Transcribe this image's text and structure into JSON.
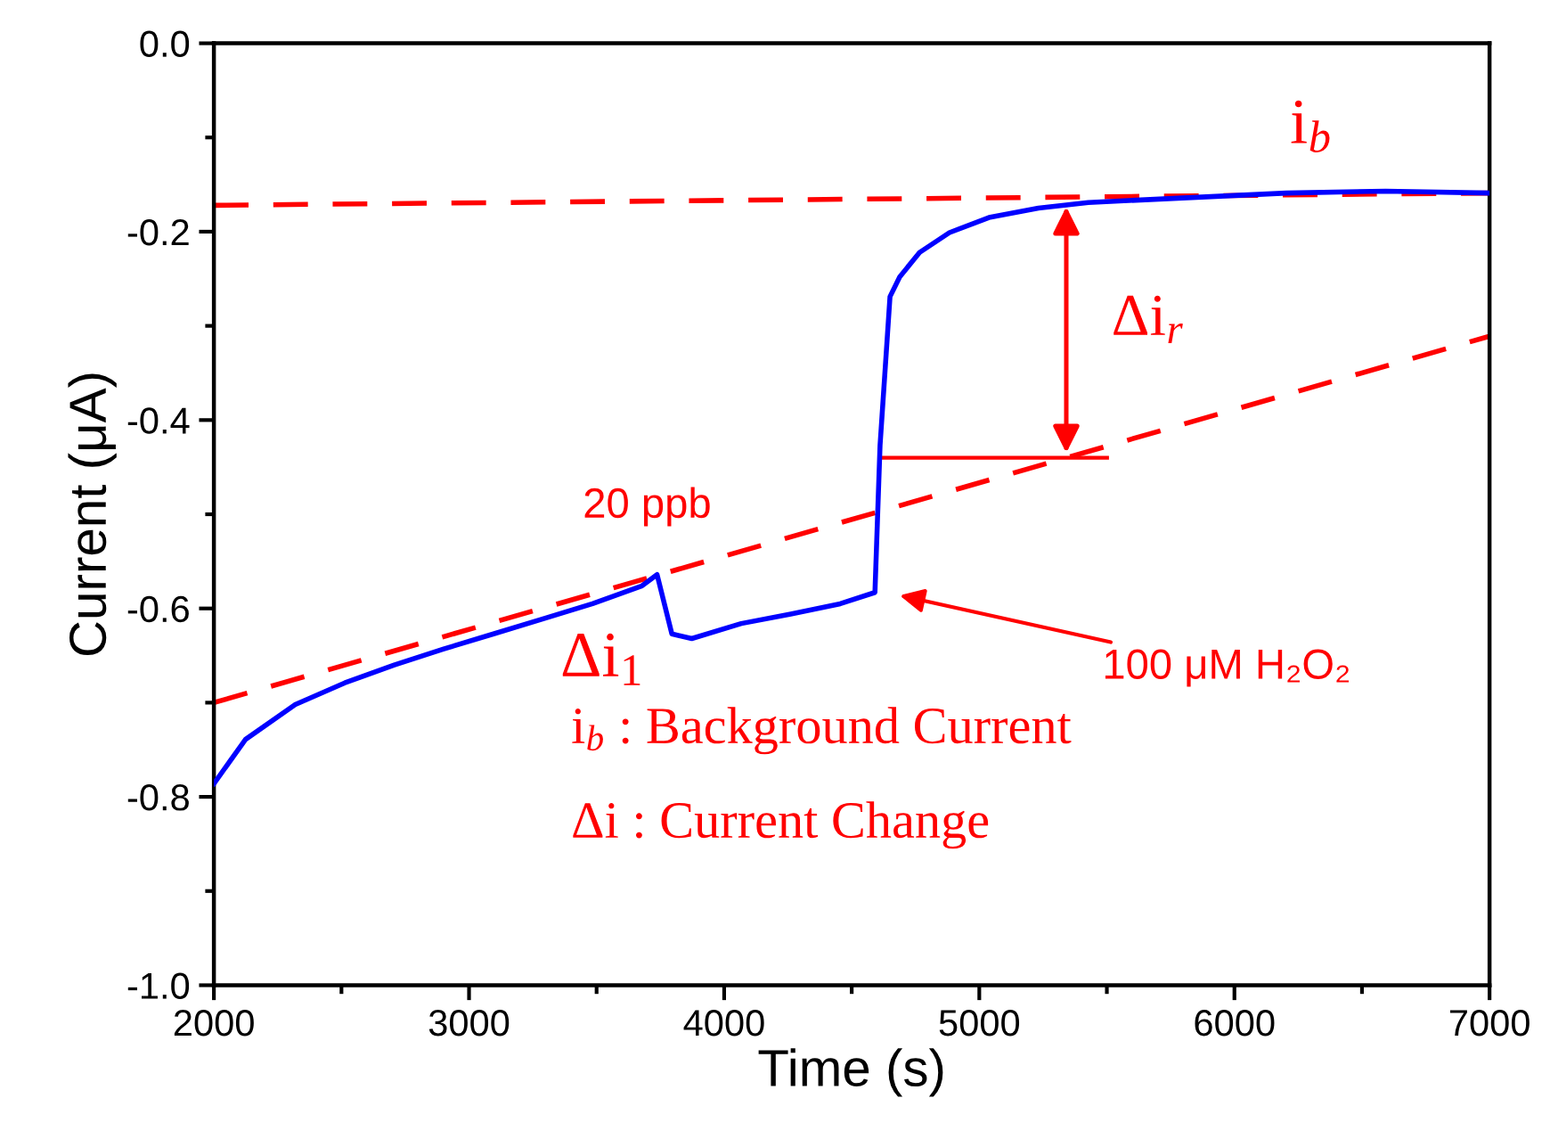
{
  "chart_data": {
    "type": "line",
    "xlabel": "Time (s)",
    "ylabel": "Current (μA)",
    "xlim": [
      2000,
      7000
    ],
    "xticks": [
      2000,
      3000,
      4000,
      5000,
      6000,
      7000
    ],
    "ylim": [
      -1.0,
      0.0
    ],
    "yticks": [
      {
        "value": -1.0,
        "label": "-1.0"
      },
      {
        "value": -0.8,
        "label": "-0.8"
      },
      {
        "value": -0.6,
        "label": "-0.6"
      },
      {
        "value": -0.4,
        "label": "-0.4"
      },
      {
        "value": -0.2,
        "label": "-0.2"
      },
      {
        "value": 0.0,
        "label": "0.0"
      }
    ],
    "series": [
      {
        "color": "#0000ff",
        "line_style": "solid",
        "x": [
          2000,
          2124,
          2319,
          2513,
          2707,
          2901,
          3096,
          3290,
          3484,
          3678,
          3737,
          3795,
          3873,
          4067,
          4261,
          4455,
          4591,
          4611,
          4650,
          4688,
          4766,
          4883,
          5038,
          5232,
          5427,
          5815,
          6204,
          6592,
          7000
        ],
        "values": [
          -0.786,
          -0.739,
          -0.702,
          -0.679,
          -0.66,
          -0.643,
          -0.627,
          -0.611,
          -0.595,
          -0.576,
          -0.564,
          -0.627,
          -0.632,
          -0.616,
          -0.606,
          -0.595,
          -0.583,
          -0.427,
          -0.269,
          -0.248,
          -0.222,
          -0.201,
          -0.185,
          -0.175,
          -0.169,
          -0.164,
          -0.159,
          -0.157,
          -0.159
        ]
      },
      {
        "color": "#ff0000",
        "line_style": "dashed",
        "x": [
          2000,
          7000
        ],
        "values": [
          -0.172,
          -0.159
        ]
      },
      {
        "color": "#ff0000",
        "line_style": "dashed",
        "x": [
          2000,
          7000
        ],
        "values": [
          -0.7,
          -0.311
        ]
      }
    ],
    "annotations": [
      "i$_{b}$",
      "Δi$_{r}$",
      "20 ppb",
      "Δi$_{1}$",
      "100 μM H₂O₂",
      "i$_{b}$ : Background Current",
      "Δi : Current Change"
    ]
  }
}
